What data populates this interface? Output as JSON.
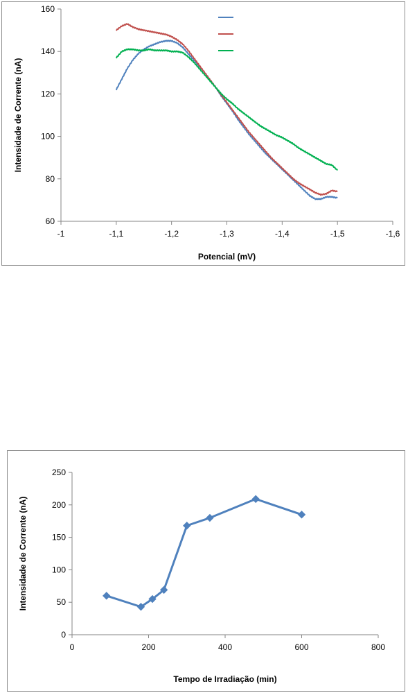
{
  "chart_data": [
    {
      "type": "line",
      "title": "",
      "xlabel": "Potencial (mV)",
      "ylabel": "Intensidade de Corrente (nA)",
      "xlim": [
        -1,
        -1.6
      ],
      "ylim": [
        60,
        160
      ],
      "x_ticks": [
        -1,
        -1.1,
        -1.2,
        -1.3,
        -1.4,
        -1.5,
        -1.6
      ],
      "x_tick_labels": [
        "-1",
        "-1,1",
        "-1,2",
        "-1,3",
        "-1,4",
        "-1,5",
        "-1,6"
      ],
      "y_ticks": [
        60,
        80,
        100,
        120,
        140,
        160
      ],
      "y_tick_labels": [
        "60",
        "80",
        "100",
        "120",
        "140",
        "160"
      ],
      "grid": false,
      "legend": "top-center",
      "series": [
        {
          "color": "#4f81bd",
          "x": [
            -1.1,
            -1.11,
            -1.12,
            -1.13,
            -1.14,
            -1.15,
            -1.16,
            -1.17,
            -1.18,
            -1.19,
            -1.2,
            -1.21,
            -1.22,
            -1.23,
            -1.24,
            -1.25,
            -1.26,
            -1.27,
            -1.28,
            -1.29,
            -1.3,
            -1.31,
            -1.32,
            -1.33,
            -1.34,
            -1.35,
            -1.36,
            -1.37,
            -1.38,
            -1.39,
            -1.4,
            -1.41,
            -1.42,
            -1.43,
            -1.44,
            -1.45,
            -1.46,
            -1.47,
            -1.48,
            -1.49,
            -1.5
          ],
          "values": [
            122,
            127,
            132,
            136,
            139,
            141,
            142.5,
            143.5,
            144.5,
            145,
            145,
            144,
            142,
            139,
            136,
            133,
            130,
            126.5,
            123,
            119,
            115.5,
            112,
            108,
            104.5,
            101,
            98,
            95,
            92,
            89.5,
            87,
            84.5,
            82,
            79.5,
            77,
            74.5,
            72,
            70.5,
            70.5,
            71.5,
            71.5,
            71
          ]
        },
        {
          "color": "#c0504d",
          "x": [
            -1.1,
            -1.11,
            -1.12,
            -1.13,
            -1.14,
            -1.15,
            -1.16,
            -1.17,
            -1.18,
            -1.19,
            -1.2,
            -1.21,
            -1.22,
            -1.23,
            -1.24,
            -1.25,
            -1.26,
            -1.27,
            -1.28,
            -1.29,
            -1.3,
            -1.31,
            -1.32,
            -1.33,
            -1.34,
            -1.35,
            -1.36,
            -1.37,
            -1.38,
            -1.39,
            -1.4,
            -1.41,
            -1.42,
            -1.43,
            -1.44,
            -1.45,
            -1.46,
            -1.47,
            -1.48,
            -1.49,
            -1.5
          ],
          "values": [
            150,
            152,
            153,
            151.5,
            150.5,
            150,
            149.5,
            149,
            148.5,
            148,
            147,
            145.5,
            143.5,
            140.5,
            137,
            133.5,
            130,
            126.5,
            123,
            119.5,
            116,
            112.5,
            109,
            105.5,
            102,
            99,
            96,
            93,
            90,
            87.5,
            85,
            82.5,
            80,
            78,
            76.5,
            75,
            73.5,
            72.5,
            73,
            74.5,
            74
          ]
        },
        {
          "color": "#00b050",
          "x": [
            -1.1,
            -1.11,
            -1.12,
            -1.13,
            -1.14,
            -1.15,
            -1.16,
            -1.17,
            -1.18,
            -1.19,
            -1.2,
            -1.21,
            -1.22,
            -1.23,
            -1.24,
            -1.25,
            -1.26,
            -1.27,
            -1.28,
            -1.29,
            -1.3,
            -1.31,
            -1.32,
            -1.33,
            -1.34,
            -1.35,
            -1.36,
            -1.37,
            -1.38,
            -1.39,
            -1.4,
            -1.41,
            -1.42,
            -1.43,
            -1.44,
            -1.45,
            -1.46,
            -1.47,
            -1.48,
            -1.49,
            -1.5
          ],
          "values": [
            137,
            140,
            141,
            141,
            140.5,
            140.5,
            141,
            140.5,
            140.5,
            140.5,
            140,
            140,
            139.5,
            137.5,
            135,
            132,
            129,
            126,
            123,
            120,
            117.5,
            115.5,
            113,
            111,
            109,
            107,
            105,
            103.5,
            102,
            100.5,
            99.5,
            98,
            96.5,
            94.5,
            93,
            91.5,
            90,
            88.5,
            87,
            86.5,
            84
          ]
        }
      ]
    },
    {
      "type": "line",
      "title": "",
      "xlabel": "Tempo de Irradiação (min)",
      "ylabel": "Intensidade de Corrente (nA)",
      "xlim": [
        0,
        800
      ],
      "ylim": [
        0,
        250
      ],
      "x_ticks": [
        0,
        200,
        400,
        600,
        800
      ],
      "x_tick_labels": [
        "0",
        "200",
        "400",
        "600",
        "800"
      ],
      "y_ticks": [
        0,
        50,
        100,
        150,
        200,
        250
      ],
      "y_tick_labels": [
        "0",
        "50",
        "100",
        "150",
        "200",
        "250"
      ],
      "grid": false,
      "series": [
        {
          "color": "#4f81bd",
          "marker": "diamond",
          "x": [
            90,
            180,
            210,
            240,
            300,
            360,
            480,
            600
          ],
          "values": [
            60,
            43,
            55,
            69,
            168,
            180,
            209,
            185
          ]
        }
      ]
    }
  ]
}
